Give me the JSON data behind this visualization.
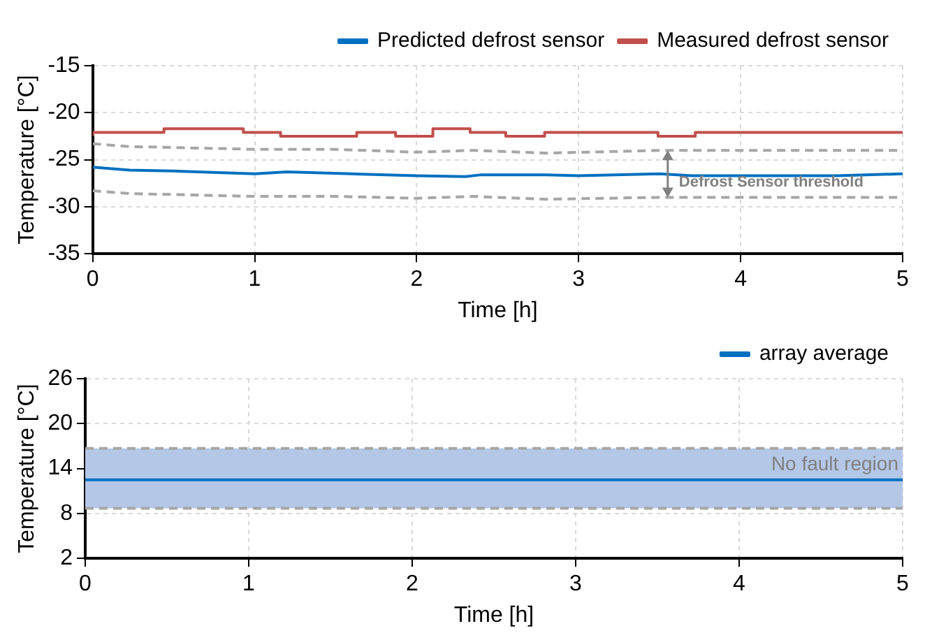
{
  "chart_data": [
    {
      "type": "line",
      "xlabel": "Time [h]",
      "ylabel": "Temperature [°C]",
      "xlim": [
        0,
        5
      ],
      "xticks": [
        0,
        1,
        2,
        3,
        4,
        5
      ],
      "ylim": [
        -35,
        -15
      ],
      "yticks": [
        -35,
        -30,
        -25,
        -20,
        -15
      ],
      "grid": true,
      "legend": "top right",
      "annotations": [
        {
          "text": "Defrost Sensor threshold",
          "x": 3.55,
          "y": -24.0
        }
      ],
      "series": [
        {
          "name": "Predicted defrost sensor",
          "color": "#0070c0",
          "x": [
            0,
            0.23,
            0.5,
            1,
            1.2,
            1.6,
            2,
            2.3,
            2.4,
            2.8,
            3,
            3.5,
            3.7,
            4.6,
            5
          ],
          "values": [
            -25.8,
            -26.1,
            -26.2,
            -26.5,
            -26.3,
            -26.5,
            -26.7,
            -26.8,
            -26.6,
            -26.6,
            -26.7,
            -26.5,
            -26.7,
            -26.7,
            -26.5
          ]
        },
        {
          "name": "Measured defrost sensor",
          "type": "step",
          "color": "#c0504d",
          "x": [
            0,
            0.44,
            0.93,
            1.16,
            1.63,
            1.87,
            2.1,
            2.33,
            2.55,
            2.79,
            3.49,
            3.72,
            4.66,
            5
          ],
          "values": [
            -22.5,
            -22.1,
            -21.7,
            -22.1,
            -22.5,
            -22.1,
            -22.5,
            -21.7,
            -22.1,
            -22.5,
            -22.1,
            -22.5,
            -22.1,
            -22.1
          ]
        },
        {
          "line_style": "dashed",
          "color": "#a6a6a6",
          "x": [
            0,
            0.23,
            0.5,
            1,
            1.5,
            2,
            2.35,
            2.8,
            3.5,
            5
          ],
          "values": [
            -23.3,
            -23.6,
            -23.7,
            -23.9,
            -23.9,
            -24.2,
            -24.0,
            -24.3,
            -24.0,
            -24.0
          ]
        },
        {
          "line_style": "dashed",
          "color": "#a6a6a6",
          "x": [
            0,
            0.23,
            0.5,
            1,
            1.5,
            2,
            2.35,
            2.8,
            3.5,
            5
          ],
          "values": [
            -28.3,
            -28.6,
            -28.7,
            -28.9,
            -28.9,
            -29.1,
            -28.9,
            -29.2,
            -29.0,
            -29.0
          ]
        }
      ]
    },
    {
      "type": "line",
      "xlabel": "Time [h]",
      "ylabel": "Temperature [°C]",
      "xlim": [
        0,
        5
      ],
      "xticks": [
        0,
        1,
        2,
        3,
        4,
        5
      ],
      "ylim": [
        2,
        26
      ],
      "yticks": [
        2,
        8,
        14,
        20,
        26
      ],
      "grid": true,
      "legend": "top right",
      "bands": [
        {
          "axis": "y",
          "from": 8.7,
          "to": 16.7,
          "label": "No fault region",
          "color": "#b4c7e7"
        }
      ],
      "ref_lines": [
        {
          "axis": "y",
          "value": 8.7,
          "color": "#a6a6a6",
          "line_style": "dashed"
        },
        {
          "axis": "y",
          "value": 16.7,
          "color": "#a6a6a6",
          "line_style": "dashed"
        }
      ],
      "series": [
        {
          "name": "array average",
          "color": "#0070c0",
          "x": [
            0,
            5
          ],
          "values": [
            12.5,
            12.5
          ]
        }
      ]
    }
  ]
}
